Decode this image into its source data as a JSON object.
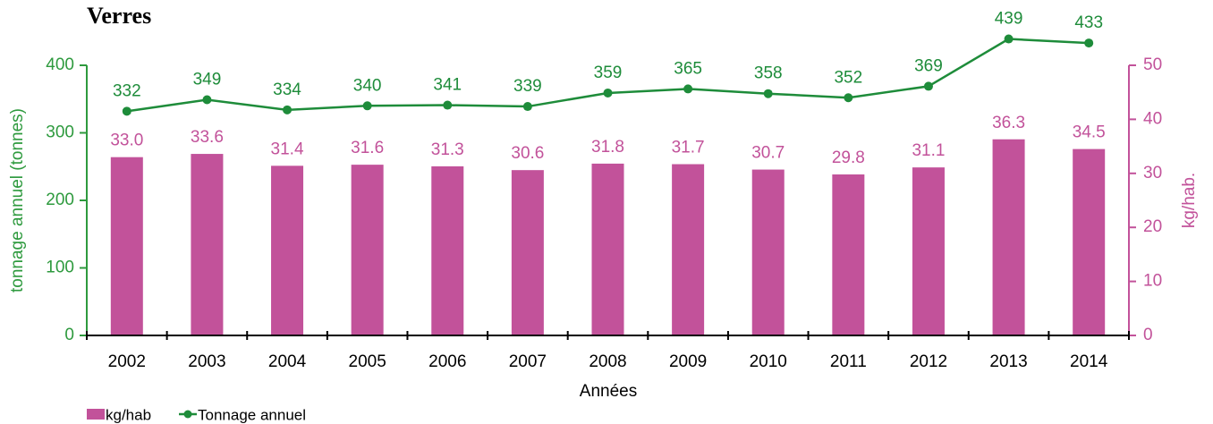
{
  "chart_data": {
    "type": "bar",
    "title": "Verres",
    "xlabel": "Années",
    "ylabel": "tonnage annuel (tonnes)",
    "y2label": "kg/hab.",
    "categories": [
      "2002",
      "2003",
      "2004",
      "2005",
      "2006",
      "2007",
      "2008",
      "2009",
      "2010",
      "2011",
      "2012",
      "2013",
      "2014"
    ],
    "series": [
      {
        "name": "kg/hab",
        "type": "bar",
        "axis": "y2",
        "color": "#c2529a",
        "values": [
          33.0,
          33.6,
          31.4,
          31.6,
          31.3,
          30.6,
          31.8,
          31.7,
          30.7,
          29.8,
          31.1,
          36.3,
          34.5
        ],
        "value_labels": [
          "33.0",
          "33.6",
          "31.4",
          "31.6",
          "31.3",
          "30.6",
          "31.8",
          "31.7",
          "30.7",
          "29.8",
          "31.1",
          "36.3",
          "34.5"
        ]
      },
      {
        "name": "Tonnage annuel",
        "type": "line",
        "axis": "y",
        "color": "#1e8c3a",
        "values": [
          332,
          349,
          334,
          340,
          341,
          339,
          359,
          365,
          358,
          352,
          369,
          439,
          433
        ]
      }
    ],
    "ylim": [
      0,
      400
    ],
    "yticks": [
      0,
      100,
      200,
      300,
      400
    ],
    "ycolor": "#2e9a3e",
    "y2lim": [
      0,
      50
    ],
    "y2ticks": [
      0,
      10,
      20,
      30,
      40,
      50
    ],
    "y2color": "#c2529a",
    "legend": "bottom-left"
  }
}
